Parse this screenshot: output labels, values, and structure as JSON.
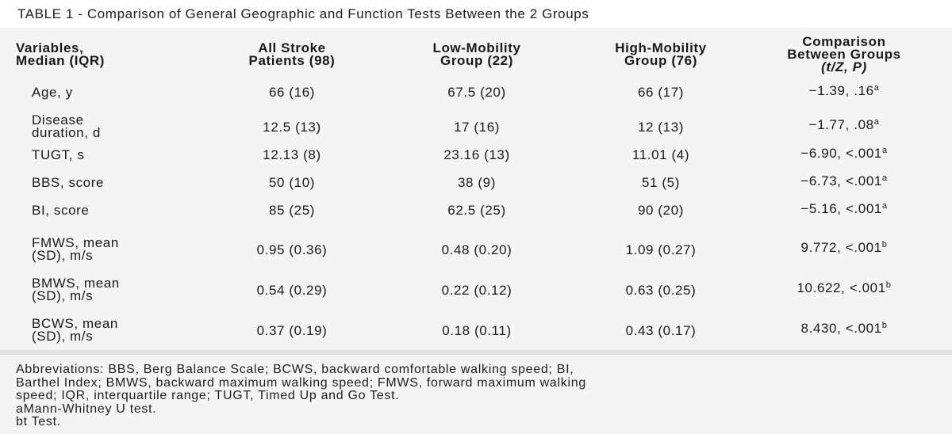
{
  "table": {
    "title": "TABLE 1 - Comparison of General Geographic and Function Tests Between the 2 Groups",
    "headers": [
      [
        "Variables,",
        "Median (IQR)"
      ],
      [
        "All Stroke",
        "Patients (98)"
      ],
      [
        "Low-Mobility",
        "Group (22)"
      ],
      [
        "High-Mobility",
        "Group (76)"
      ],
      [
        "Comparison",
        "Between Groups",
        "(t/Z, P)"
      ]
    ],
    "rows": [
      {
        "label": [
          "Age, y"
        ],
        "all": "66 (16)",
        "low": "67.5 (20)",
        "high": "66 (17)",
        "cmp": "−1.39, .16",
        "sup": "a"
      },
      {
        "label": [
          "Disease",
          "duration, d"
        ],
        "all": "12.5 (13)",
        "low": "17 (16)",
        "high": "12 (13)",
        "cmp": "−1.77, .08",
        "sup": "a"
      },
      {
        "label": [
          "TUGT, s"
        ],
        "all": "12.13 (8)",
        "low": "23.16 (13)",
        "high": "11.01 (4)",
        "cmp": "−6.90, <.001",
        "sup": "a"
      },
      {
        "label": [
          "BBS, score"
        ],
        "all": "50 (10)",
        "low": "38 (9)",
        "high": "51 (5)",
        "cmp": "−6.73, <.001",
        "sup": "a"
      },
      {
        "label": [
          "BI, score"
        ],
        "all": "85 (25)",
        "low": "62.5 (25)",
        "high": "90 (20)",
        "cmp": "−5.16, <.001",
        "sup": "a"
      },
      {
        "label": [
          "FMWS, mean",
          "(SD), m/s"
        ],
        "all": "0.95 (0.36)",
        "low": "0.48 (0.20)",
        "high": "1.09 (0.27)",
        "cmp": "9.772, <.001",
        "sup": "b"
      },
      {
        "label": [
          "BMWS, mean",
          "(SD), m/s"
        ],
        "all": "0.54 (0.29)",
        "low": "0.22 (0.12)",
        "high": "0.63 (0.25)",
        "cmp": "10.622, <.001",
        "sup": "b"
      },
      {
        "label": [
          "BCWS, mean",
          "(SD), m/s"
        ],
        "all": "0.37 (0.19)",
        "low": "0.18 (0.11)",
        "high": "0.43 (0.17)",
        "cmp": "8.430, <.001",
        "sup": "b"
      }
    ],
    "footnotes": [
      "Abbreviations: BBS, Berg Balance Scale; BCWS, backward comfortable walking speed; BI,",
      "Barthel Index; BMWS, backward maximum walking speed; FMWS, forward maximum walking",
      "speed; IQR, interquartile range; TUGT, Timed Up and Go Test.",
      "aMann-Whitney U test.",
      "bt Test."
    ]
  }
}
